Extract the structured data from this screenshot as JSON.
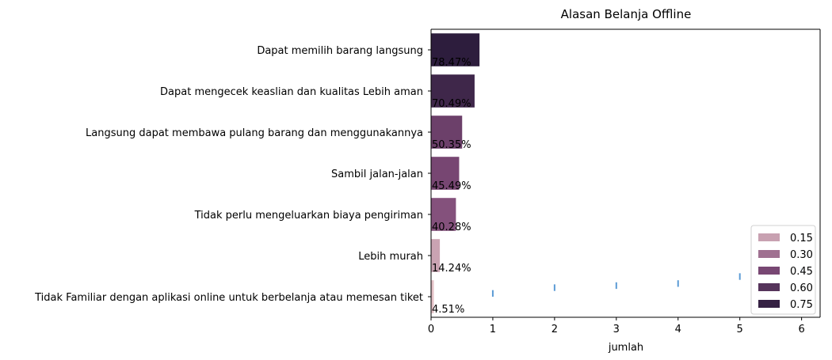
{
  "chart_data": {
    "type": "bar",
    "orientation": "horizontal",
    "title": "Alasan Belanja Offline",
    "xlabel": "jumlah",
    "ylabel": "",
    "xlim": [
      0,
      6.3
    ],
    "xticks": [
      0,
      1,
      2,
      3,
      4,
      5,
      6
    ],
    "grid": false,
    "legend_position": "lower-right",
    "categories": [
      "Dapat memilih barang langsung",
      "Dapat mengecek keaslian dan kualitas Lebih aman",
      "Langsung dapat membawa pulang barang dan menggunakannya",
      "Sambil jalan-jalan",
      "Tidak perlu mengeluarkan biaya pengiriman",
      "Lebih murah",
      "Tidak Familiar dengan aplikasi online untuk berbelanja atau memesan tiket"
    ],
    "values": [
      0.7847,
      0.7049,
      0.5035,
      0.4549,
      0.4028,
      0.1424,
      0.0451
    ],
    "data_labels": [
      "78.47%",
      "70.49%",
      "50.35%",
      "45.49%",
      "40.28%",
      "14.24%",
      "4.51%"
    ],
    "error_bars": [
      {
        "x": 1,
        "low": 0.5,
        "high": 0.66
      },
      {
        "x": 2,
        "low": 0.64,
        "high": 0.8
      },
      {
        "x": 3,
        "low": 0.69,
        "high": 0.85
      },
      {
        "x": 4,
        "low": 0.74,
        "high": 0.9
      },
      {
        "x": 5,
        "low": 0.91,
        "high": 1.07
      },
      {
        "x": 6,
        "low": 1.1,
        "high": 1.2
      }
    ],
    "error_bar_color": "#5b9bd5",
    "colormap": {
      "low_value": 0.0,
      "high_value": 0.85,
      "low_color": "#f0d0d0",
      "high_color": "#1e1533",
      "mid_color": "#7e4a77"
    },
    "legend": [
      {
        "label": "0.15",
        "value": 0.15
      },
      {
        "label": "0.30",
        "value": 0.3
      },
      {
        "label": "0.45",
        "value": 0.45
      },
      {
        "label": "0.60",
        "value": 0.6
      },
      {
        "label": "0.75",
        "value": 0.75
      }
    ]
  }
}
